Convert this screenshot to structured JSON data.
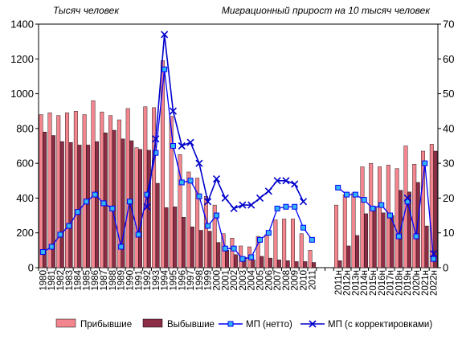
{
  "chart_data": {
    "type": "bar",
    "left_axis_title": "Тысяч человек",
    "right_axis_title": "Миграционный прирост на 10 тысяч человек",
    "categories": [
      "1980",
      "1981",
      "1982",
      "1983",
      "1984",
      "1985",
      "1986",
      "1987",
      "1988",
      "1989",
      "1990",
      "1991",
      "1992",
      "1993",
      "1994",
      "1995",
      "1996",
      "1997",
      "1998",
      "1999",
      "2000",
      "2001",
      "2002",
      "2003",
      "2004",
      "2005",
      "2006",
      "2007",
      "2008",
      "2009",
      "2010",
      "2011",
      "",
      "",
      "2011н",
      "2012н",
      "2013н",
      "2014н",
      "2015н",
      "2016н",
      "2017н",
      "2018н",
      "2019н",
      "2020н",
      "2021н",
      "2022н"
    ],
    "ylim_left": [
      0,
      1400
    ],
    "yticks_left": [
      0,
      200,
      400,
      600,
      800,
      1000,
      1200,
      1400
    ],
    "ylim_right": [
      0,
      70
    ],
    "yticks_right": [
      0,
      10,
      20,
      30,
      40,
      50,
      60,
      70
    ],
    "series": [
      {
        "name": "Прибывшие",
        "axis": "left",
        "kind": "bar",
        "color": "#F2858E",
        "values": [
          880,
          890,
          875,
          890,
          900,
          880,
          960,
          895,
          875,
          850,
          915,
          690,
          925,
          920,
          1190,
          870,
          650,
          550,
          515,
          410,
          360,
          195,
          170,
          125,
          120,
          180,
          190,
          275,
          280,
          280,
          195,
          100,
          null,
          null,
          360,
          420,
          430,
          580,
          600,
          580,
          590,
          570,
          700,
          595,
          670,
          710
        ]
      },
      {
        "name": "Выбывшие",
        "axis": "left",
        "kind": "bar",
        "color": "#8B2E45",
        "values": [
          780,
          760,
          725,
          720,
          705,
          705,
          725,
          775,
          790,
          740,
          730,
          680,
          675,
          485,
          345,
          350,
          290,
          235,
          215,
          210,
          145,
          100,
          75,
          60,
          45,
          65,
          55,
          45,
          40,
          35,
          35,
          30,
          null,
          null,
          40,
          125,
          185,
          310,
          345,
          315,
          300,
          445,
          435,
          490,
          240,
          670
        ]
      },
      {
        "name": "МП  (нетто)",
        "axis": "right",
        "kind": "line",
        "color": "#0000FF",
        "marker": "square",
        "marker_fill": "#33B5F0",
        "values": [
          4.5,
          6,
          9.5,
          12,
          16,
          19,
          21,
          18.5,
          17,
          6,
          19,
          9.5,
          21,
          33,
          57,
          35,
          24.5,
          25,
          20.5,
          12,
          15,
          5.5,
          5.5,
          2.5,
          3,
          8,
          10,
          17,
          17.5,
          17.5,
          11.5,
          8,
          null,
          null,
          23,
          21,
          21,
          19.5,
          17,
          18,
          15,
          9,
          19,
          9,
          30,
          2.5
        ]
      },
      {
        "name": "МП  (с корректировками)",
        "axis": "right",
        "kind": "line",
        "color": "#0000CC",
        "marker": "x",
        "values": [
          null,
          null,
          null,
          null,
          null,
          null,
          null,
          null,
          null,
          null,
          null,
          null,
          17.5,
          37,
          67,
          45,
          35,
          36,
          30,
          19,
          25.5,
          20,
          17,
          18,
          18,
          20,
          22,
          25,
          25,
          24,
          19,
          null,
          null,
          null,
          null,
          null,
          null,
          null,
          null,
          null,
          null,
          null,
          20,
          null,
          null,
          4
        ]
      }
    ],
    "legend_position": "bottom",
    "grid": false
  }
}
